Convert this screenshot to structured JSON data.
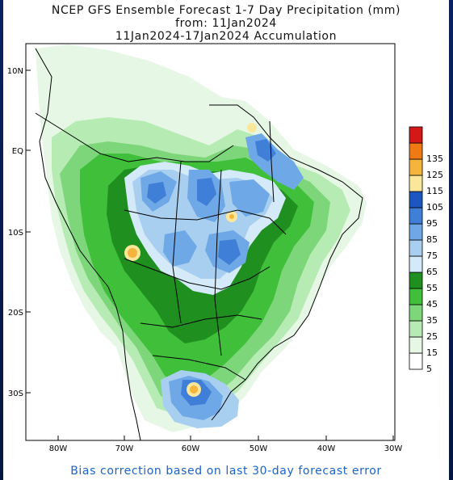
{
  "title": {
    "line1": "NCEP GFS Ensemble Forecast 1-7 Day Precipitation (mm)",
    "line2": "from: 11Jan2024",
    "line3": "11Jan2024-17Jan2024 Accumulation"
  },
  "footer": "Bias correction based on last 30-day forecast error",
  "axes": {
    "lat_labels": [
      "10N",
      "EQ",
      "10S",
      "20S",
      "30S"
    ],
    "lon_labels": [
      "80W",
      "70W",
      "60W",
      "50W",
      "40W",
      "30W"
    ]
  },
  "legend": {
    "units": "mm",
    "levels": [
      {
        "label": "5",
        "color": "#ffffff"
      },
      {
        "label": "15",
        "color": "#e6f7e6"
      },
      {
        "label": "25",
        "color": "#b7ebb4"
      },
      {
        "label": "35",
        "color": "#7ed67a"
      },
      {
        "label": "45",
        "color": "#3fbf3a"
      },
      {
        "label": "55",
        "color": "#1f8f1f"
      },
      {
        "label": "65",
        "color": "#d4eaf8"
      },
      {
        "label": "75",
        "color": "#a9cff0"
      },
      {
        "label": "85",
        "color": "#6fa8e6"
      },
      {
        "label": "95",
        "color": "#3f7fd8"
      },
      {
        "label": "105",
        "color": "#1d56c0"
      },
      {
        "label": "115",
        "color": "#fbe79a"
      },
      {
        "label": "125",
        "color": "#f5b43c"
      },
      {
        "label": "135",
        "color": "#ef7a14"
      },
      {
        "label": "",
        "color": "#d41818"
      }
    ]
  }
}
